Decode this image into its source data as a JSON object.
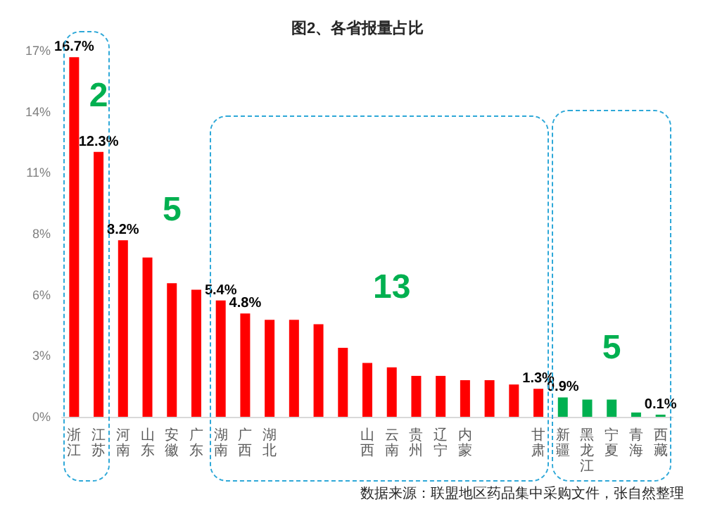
{
  "chart_data": {
    "type": "bar",
    "title": "图2、各省报量占比",
    "categories": [
      "浙江",
      "江苏",
      "河南",
      "山东",
      "安徽",
      "广东",
      "湖南",
      "广西",
      "湖北",
      null,
      null,
      null,
      "山西",
      "云南",
      "贵州",
      "辽宁",
      "内蒙",
      null,
      null,
      "甘肃",
      "新疆",
      "黑龙江",
      "宁夏",
      "青海",
      "西藏"
    ],
    "values": [
      16.7,
      12.3,
      8.2,
      7.4,
      6.2,
      5.9,
      5.4,
      4.8,
      4.5,
      4.5,
      4.3,
      3.2,
      2.5,
      2.3,
      1.9,
      1.9,
      1.7,
      1.7,
      1.5,
      1.3,
      0.9,
      0.8,
      0.8,
      0.2,
      0.1
    ],
    "colors": [
      "#ff0000",
      "#ff0000",
      "#ff0000",
      "#ff0000",
      "#ff0000",
      "#ff0000",
      "#ff0000",
      "#ff0000",
      "#ff0000",
      "#ff0000",
      "#ff0000",
      "#ff0000",
      "#ff0000",
      "#ff0000",
      "#ff0000",
      "#ff0000",
      "#ff0000",
      "#ff0000",
      "#ff0000",
      "#ff0000",
      "#00b050",
      "#00b050",
      "#00b050",
      "#00b050",
      "#00b050"
    ],
    "value_labels": [
      "16.7%",
      "12.3%",
      "8.2%",
      null,
      null,
      null,
      "5.4%",
      "4.8%",
      null,
      null,
      null,
      null,
      null,
      null,
      null,
      null,
      null,
      null,
      null,
      "1.3%",
      "0.9%",
      null,
      null,
      null,
      "0.1%"
    ],
    "ylim": [
      0,
      17
    ],
    "yticks": [
      {
        "value": 0,
        "label": "0%"
      },
      {
        "value": 2.83,
        "label": "3%"
      },
      {
        "value": 5.67,
        "label": "6%"
      },
      {
        "value": 8.5,
        "label": "8%"
      },
      {
        "value": 11.33,
        "label": "11%"
      },
      {
        "value": 14.17,
        "label": "14%"
      },
      {
        "value": 17,
        "label": "17%"
      }
    ],
    "annotations": [
      "2",
      "5",
      "13",
      "5",
      "数据来源：联盟地区药品集中采购文件，张自然整理"
    ]
  }
}
